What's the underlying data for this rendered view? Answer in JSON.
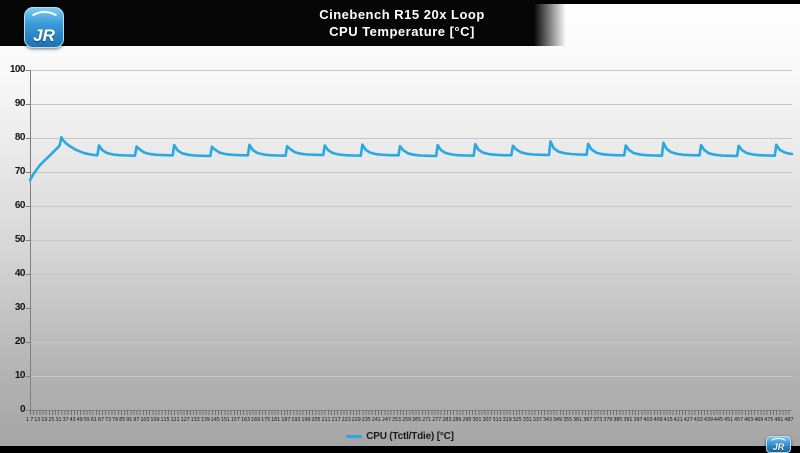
{
  "branding": {
    "logo_text": "JR"
  },
  "header": {
    "title": "Cinebench R15 20x Loop",
    "subtitle": "CPU Temperature [°C]"
  },
  "legend": {
    "label": "CPU (Tctl/Tdie) [°C]"
  },
  "colors": {
    "series": "#29a9e1",
    "banner": "#060606",
    "grid": "#c6c6c6",
    "axis": "#7f7f7f",
    "bg_top": "#ffffff",
    "bg_bottom": "#a4a4a4",
    "logo_blue": "#2e8fd0"
  },
  "chart_data": {
    "type": "line",
    "title": "Cinebench R15 20x Loop",
    "subtitle": "CPU Temperature [°C]",
    "xlabel": "",
    "ylabel": "",
    "xlim": [
      1,
      487
    ],
    "ylim": [
      0,
      100
    ],
    "grid": true,
    "legend_position": "bottom",
    "y_ticks": [
      100,
      90,
      80,
      70,
      60,
      50,
      40,
      30,
      20,
      10,
      0
    ],
    "x_ticks": [
      "1",
      "7",
      "13",
      "19",
      "25",
      "31",
      "37",
      "43",
      "49",
      "55",
      "61",
      "67",
      "73",
      "79",
      "85",
      "91",
      "97",
      "103",
      "109",
      "115",
      "121",
      "127",
      "133",
      "139",
      "145",
      "151",
      "157",
      "163",
      "169",
      "175",
      "181",
      "187",
      "193",
      "199",
      "205",
      "211",
      "217",
      "223",
      "229",
      "235",
      "241",
      "247",
      "253",
      "259",
      "265",
      "271",
      "277",
      "283",
      "289",
      "295",
      "301",
      "307",
      "313",
      "319",
      "325",
      "331",
      "337",
      "343",
      "349",
      "355",
      "361",
      "367",
      "373",
      "379",
      "385",
      "391",
      "397",
      "403",
      "409",
      "415",
      "421",
      "427",
      "433",
      "439",
      "445",
      "451",
      "457",
      "463",
      "469",
      "475",
      "481",
      "487"
    ],
    "series": [
      {
        "name": "CPU (Tctl/Tdie) [°C]",
        "color": "#29a9e1",
        "points": [
          [
            1,
            67.6
          ],
          [
            2,
            68.4
          ],
          [
            3,
            69.2
          ],
          [
            5,
            70.6
          ],
          [
            7,
            71.8
          ],
          [
            9,
            72.8
          ],
          [
            11,
            73.7
          ],
          [
            13,
            74.6
          ],
          [
            15,
            75.5
          ],
          [
            17,
            76.4
          ],
          [
            19,
            77.3
          ],
          [
            20,
            77.9
          ],
          [
            21,
            80.2
          ],
          [
            22,
            79.4
          ],
          [
            24,
            78.4
          ],
          [
            27,
            77.4
          ],
          [
            30,
            76.6
          ],
          [
            33,
            76.0
          ],
          [
            36,
            75.5
          ],
          [
            39,
            75.2
          ],
          [
            42,
            75.0
          ],
          [
            44,
            74.9
          ],
          [
            45,
            77.8
          ],
          [
            47,
            76.5
          ],
          [
            50,
            75.6
          ],
          [
            54,
            75.15
          ],
          [
            58,
            74.95
          ],
          [
            63,
            74.85
          ],
          [
            68,
            74.8
          ],
          [
            69,
            77.5
          ],
          [
            71,
            76.6
          ],
          [
            74,
            75.7
          ],
          [
            78,
            75.25
          ],
          [
            82,
            75.05
          ],
          [
            87,
            74.95
          ],
          [
            92,
            74.9
          ],
          [
            93,
            77.9
          ],
          [
            95,
            76.4
          ],
          [
            98,
            75.5
          ],
          [
            102,
            75.05
          ],
          [
            106,
            74.85
          ],
          [
            111,
            74.75
          ],
          [
            116,
            74.7
          ],
          [
            117,
            77.4
          ],
          [
            119,
            76.6
          ],
          [
            122,
            75.7
          ],
          [
            126,
            75.25
          ],
          [
            130,
            75.05
          ],
          [
            135,
            74.95
          ],
          [
            140,
            74.9
          ],
          [
            141,
            78.0
          ],
          [
            143,
            76.5
          ],
          [
            146,
            75.6
          ],
          [
            150,
            75.15
          ],
          [
            154,
            74.95
          ],
          [
            159,
            74.85
          ],
          [
            164,
            74.8
          ],
          [
            165,
            77.6
          ],
          [
            167,
            76.7
          ],
          [
            170,
            75.8
          ],
          [
            174,
            75.35
          ],
          [
            178,
            75.15
          ],
          [
            183,
            75.05
          ],
          [
            188,
            75.0
          ],
          [
            189,
            77.8
          ],
          [
            191,
            76.5
          ],
          [
            194,
            75.6
          ],
          [
            198,
            75.15
          ],
          [
            202,
            74.95
          ],
          [
            207,
            74.85
          ],
          [
            212,
            74.8
          ],
          [
            213,
            78.1
          ],
          [
            215,
            76.6
          ],
          [
            218,
            75.7
          ],
          [
            222,
            75.25
          ],
          [
            226,
            75.05
          ],
          [
            231,
            74.95
          ],
          [
            236,
            74.9
          ],
          [
            237,
            77.6
          ],
          [
            239,
            76.4
          ],
          [
            242,
            75.5
          ],
          [
            246,
            75.05
          ],
          [
            250,
            74.85
          ],
          [
            255,
            74.75
          ],
          [
            260,
            74.7
          ],
          [
            261,
            77.9
          ],
          [
            263,
            76.5
          ],
          [
            266,
            75.6
          ],
          [
            270,
            75.15
          ],
          [
            274,
            74.95
          ],
          [
            279,
            74.85
          ],
          [
            284,
            74.8
          ],
          [
            285,
            78.2
          ],
          [
            287,
            76.6
          ],
          [
            290,
            75.7
          ],
          [
            294,
            75.25
          ],
          [
            298,
            75.05
          ],
          [
            303,
            74.95
          ],
          [
            308,
            74.9
          ],
          [
            309,
            77.7
          ],
          [
            311,
            76.7
          ],
          [
            314,
            75.8
          ],
          [
            318,
            75.35
          ],
          [
            322,
            75.15
          ],
          [
            327,
            75.05
          ],
          [
            332,
            75.0
          ],
          [
            333,
            79.0
          ],
          [
            335,
            77.0
          ],
          [
            338,
            76.0
          ],
          [
            342,
            75.5
          ],
          [
            346,
            75.3
          ],
          [
            351,
            75.15
          ],
          [
            356,
            75.1
          ],
          [
            357,
            78.3
          ],
          [
            359,
            76.7
          ],
          [
            362,
            75.7
          ],
          [
            366,
            75.25
          ],
          [
            370,
            75.05
          ],
          [
            375,
            74.95
          ],
          [
            380,
            74.9
          ],
          [
            381,
            77.8
          ],
          [
            383,
            76.5
          ],
          [
            386,
            75.6
          ],
          [
            390,
            75.15
          ],
          [
            394,
            74.95
          ],
          [
            399,
            74.85
          ],
          [
            404,
            74.8
          ],
          [
            405,
            78.6
          ],
          [
            407,
            76.8
          ],
          [
            410,
            75.8
          ],
          [
            414,
            75.3
          ],
          [
            418,
            75.05
          ],
          [
            423,
            74.95
          ],
          [
            428,
            74.9
          ],
          [
            429,
            77.9
          ],
          [
            431,
            76.5
          ],
          [
            434,
            75.5
          ],
          [
            438,
            75.05
          ],
          [
            442,
            74.85
          ],
          [
            447,
            74.75
          ],
          [
            452,
            74.7
          ],
          [
            453,
            77.7
          ],
          [
            455,
            76.5
          ],
          [
            458,
            75.6
          ],
          [
            462,
            75.15
          ],
          [
            466,
            74.95
          ],
          [
            471,
            74.85
          ],
          [
            476,
            74.8
          ],
          [
            477,
            78.0
          ],
          [
            479,
            76.6
          ],
          [
            482,
            75.8
          ],
          [
            485,
            75.4
          ],
          [
            487,
            75.3
          ]
        ]
      }
    ]
  }
}
